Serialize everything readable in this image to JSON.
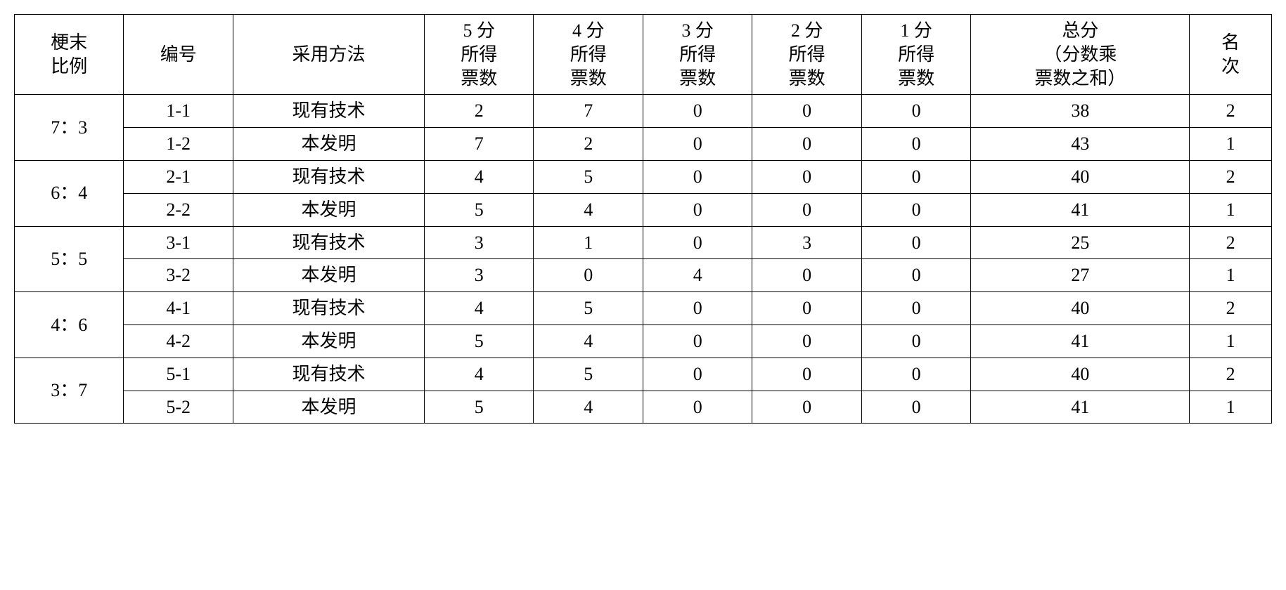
{
  "table": {
    "headers": {
      "ratio": "梗末\n比例",
      "id": "编号",
      "method": "采用方法",
      "s5": "5 分\n所得\n票数",
      "s4": "4 分\n所得\n票数",
      "s3": "3 分\n所得\n票数",
      "s2": "2 分\n所得\n票数",
      "s1": "1 分\n所得\n票数",
      "total": "总分\n（分数乘\n票数之和）",
      "rank": "名\n次"
    },
    "groups": [
      {
        "ratio": "7：3",
        "rows": [
          {
            "id": "1-1",
            "method": "现有技术",
            "s5": "2",
            "s4": "7",
            "s3": "0",
            "s2": "0",
            "s1": "0",
            "total": "38",
            "rank": "2"
          },
          {
            "id": "1-2",
            "method": "本发明",
            "s5": "7",
            "s4": "2",
            "s3": "0",
            "s2": "0",
            "s1": "0",
            "total": "43",
            "rank": "1"
          }
        ]
      },
      {
        "ratio": "6：4",
        "rows": [
          {
            "id": "2-1",
            "method": "现有技术",
            "s5": "4",
            "s4": "5",
            "s3": "0",
            "s2": "0",
            "s1": "0",
            "total": "40",
            "rank": "2"
          },
          {
            "id": "2-2",
            "method": "本发明",
            "s5": "5",
            "s4": "4",
            "s3": "0",
            "s2": "0",
            "s1": "0",
            "total": "41",
            "rank": "1"
          }
        ]
      },
      {
        "ratio": "5：5",
        "rows": [
          {
            "id": "3-1",
            "method": "现有技术",
            "s5": "3",
            "s4": "1",
            "s3": "0",
            "s2": "3",
            "s1": "0",
            "total": "25",
            "rank": "2"
          },
          {
            "id": "3-2",
            "method": "本发明",
            "s5": "3",
            "s4": "0",
            "s3": "4",
            "s2": "0",
            "s1": "0",
            "total": "27",
            "rank": "1"
          }
        ]
      },
      {
        "ratio": "4：6",
        "rows": [
          {
            "id": "4-1",
            "method": "现有技术",
            "s5": "4",
            "s4": "5",
            "s3": "0",
            "s2": "0",
            "s1": "0",
            "total": "40",
            "rank": "2"
          },
          {
            "id": "4-2",
            "method": "本发明",
            "s5": "5",
            "s4": "4",
            "s3": "0",
            "s2": "0",
            "s1": "0",
            "total": "41",
            "rank": "1"
          }
        ]
      },
      {
        "ratio": "3：7",
        "rows": [
          {
            "id": "5-1",
            "method": "现有技术",
            "s5": "4",
            "s4": "5",
            "s3": "0",
            "s2": "0",
            "s1": "0",
            "total": "40",
            "rank": "2"
          },
          {
            "id": "5-2",
            "method": "本发明",
            "s5": "5",
            "s4": "4",
            "s3": "0",
            "s2": "0",
            "s1": "0",
            "total": "41",
            "rank": "1"
          }
        ]
      }
    ]
  },
  "style": {
    "font_family": "SimSun",
    "font_size_pt": 20,
    "border_color": "#000000",
    "background_color": "#ffffff",
    "text_color": "#000000",
    "column_widths_pct": {
      "ratio": 8,
      "id": 8,
      "method": 14,
      "score_each": 8,
      "total": 16,
      "rank": 6
    }
  }
}
